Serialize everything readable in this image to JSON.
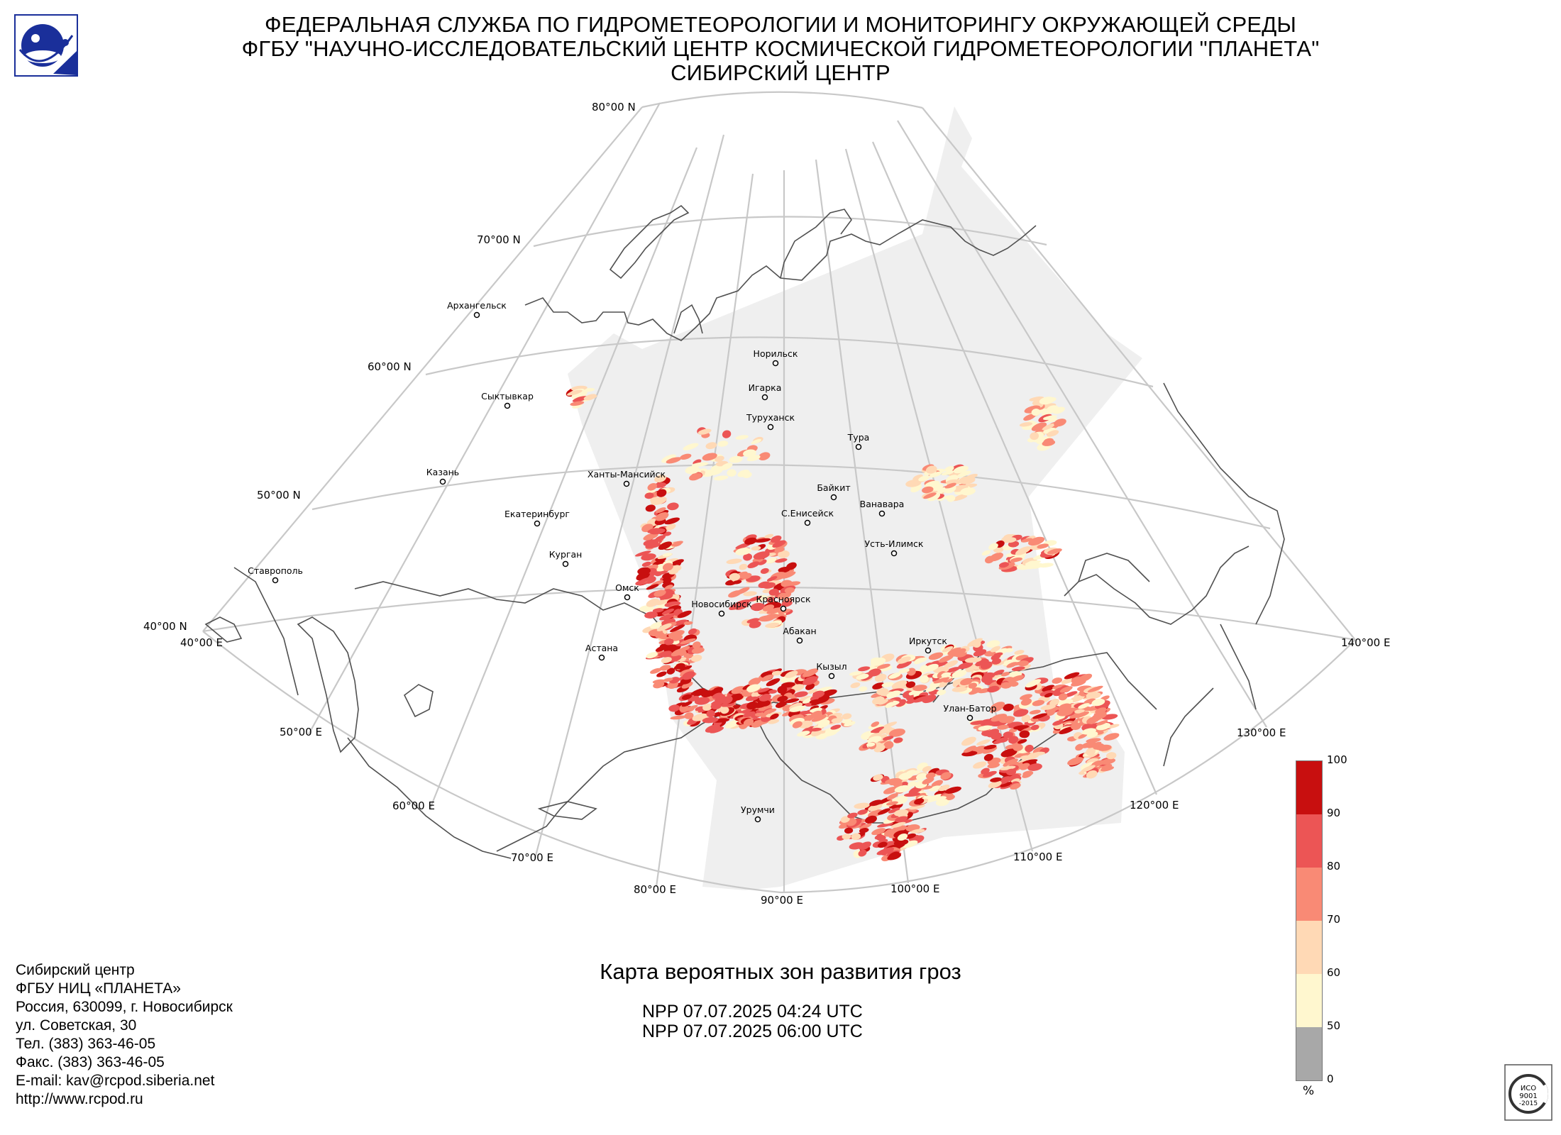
{
  "header": {
    "line1": "ФЕДЕРАЛЬНАЯ СЛУЖБА ПО ГИДРОМЕТЕОРОЛОГИИ И МОНИТОРИНГУ ОКРУЖАЮЩЕЙ СРЕДЫ",
    "line2": "ФГБУ \"НАУЧНО-ИССЛЕДОВАТЕЛЬСКИЙ ЦЕНТР КОСМИЧЕСКОЙ ГИДРОМЕТЕОРОЛОГИИ \"ПЛАНЕТА\"",
    "line3": "СИБИРСКИЙ ЦЕНТР"
  },
  "map": {
    "lat_labels": [
      "80°00 N",
      "70°00 N",
      "60°00 N",
      "50°00 N",
      "40°00 N"
    ],
    "lon_labels": [
      "40°00 E",
      "50°00 E",
      "60°00 E",
      "70°00 E",
      "80°00 E",
      "90°00 E",
      "100°00 E",
      "110°00 E",
      "120°00 E",
      "130°00 E",
      "140°00 E"
    ],
    "cities": [
      "Архангельск",
      "Норильск",
      "Игарка",
      "Сыктывкар",
      "Туруханск",
      "Тура",
      "Казань",
      "Ханты-Мансийск",
      "Байкит",
      "Ванавара",
      "Екатеринбург",
      "С.Енисейск",
      "Усть-Илимск",
      "Курган",
      "Ставрополь",
      "Омск",
      "Красноярск",
      "Новосибирск",
      "Абакан",
      "Иркутск",
      "Астана",
      "Кызыл",
      "Улан-Батор",
      "Урумчи"
    ]
  },
  "colors": {
    "swath": "#efefef",
    "grid": "#c8c8c8",
    "coast": "#505050",
    "p50": "#fff7cf",
    "p60": "#ffd9b5",
    "p70": "#f98a75",
    "p80": "#ec5555",
    "p90": "#c80f0f",
    "p0": "#a8a8a8"
  },
  "legend": {
    "ticks": [
      "100",
      "90",
      "80",
      "70",
      "60",
      "50",
      "0"
    ],
    "unit": "%"
  },
  "map_title": "Карта вероятных зон развития гроз",
  "passes": [
    "NPP 07.07.2025  04:24 UTC",
    "NPP 07.07.2025  06:00 UTC"
  ],
  "contacts": {
    "org1": "Сибирский центр",
    "org2": "ФГБУ НИЦ «ПЛАНЕТА»",
    "address1": "Россия, 630099, г. Новосибирск",
    "address2": "ул. Советская, 30",
    "phone": "Тел. (383) 363-46-05",
    "fax": "Факс. (383) 363-46-05",
    "email": "E-mail: kav@rcpod.siberia.net",
    "web": "http://www.rcpod.ru"
  },
  "iso_badge": {
    "text1": "ИСО",
    "text2": "9001",
    "text3": "-2015"
  }
}
